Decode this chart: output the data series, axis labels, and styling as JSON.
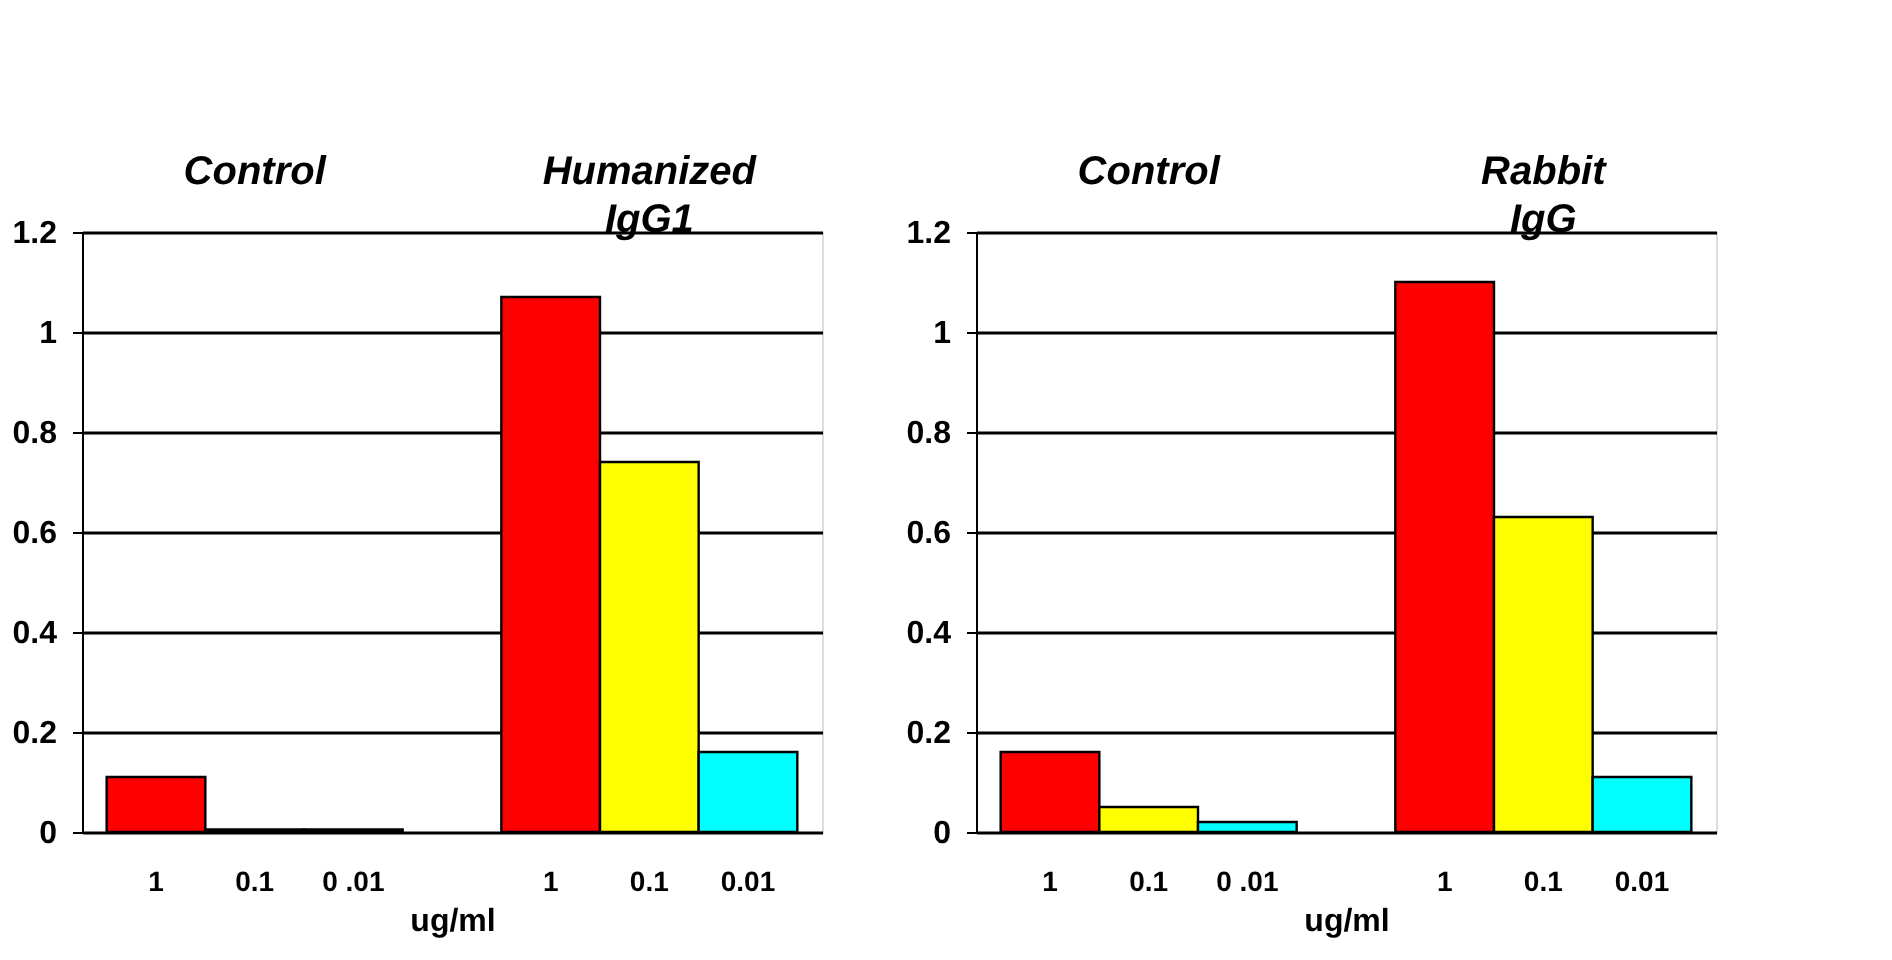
{
  "chart_data": [
    {
      "type": "bar",
      "xlabel": "ug/ml",
      "categories": [
        "1",
        "0.1",
        "0 .01",
        null,
        "1",
        "0.1",
        "0.01"
      ],
      "values": [
        0.11,
        0.005,
        0.005,
        null,
        1.07,
        0.74,
        0.16
      ],
      "colors": [
        "#ff0000",
        "#ffff00",
        "#00ffff",
        null,
        "#ff0000",
        "#ffff00",
        "#00ffff"
      ],
      "ylim": [
        0,
        1.2
      ],
      "yticks": [
        0,
        0.2,
        0.4,
        0.6,
        0.8,
        1,
        1.2
      ],
      "grid": "y",
      "annotations": [
        "Control",
        "Humanized IgG1"
      ]
    },
    {
      "type": "bar",
      "xlabel": "ug/ml",
      "categories": [
        "1",
        "0.1",
        "0 .01",
        null,
        "1",
        "0.1",
        "0.01"
      ],
      "values": [
        0.16,
        0.05,
        0.02,
        null,
        1.1,
        0.63,
        0.11
      ],
      "colors": [
        "#ff0000",
        "#ffff00",
        "#00ffff",
        null,
        "#ff0000",
        "#ffff00",
        "#00ffff"
      ],
      "ylim": [
        0,
        1.2
      ],
      "yticks": [
        0,
        0.2,
        0.4,
        0.6,
        0.8,
        1,
        1.2
      ],
      "grid": "y",
      "annotations": [
        "Control",
        "Rabbit IgG"
      ]
    }
  ]
}
